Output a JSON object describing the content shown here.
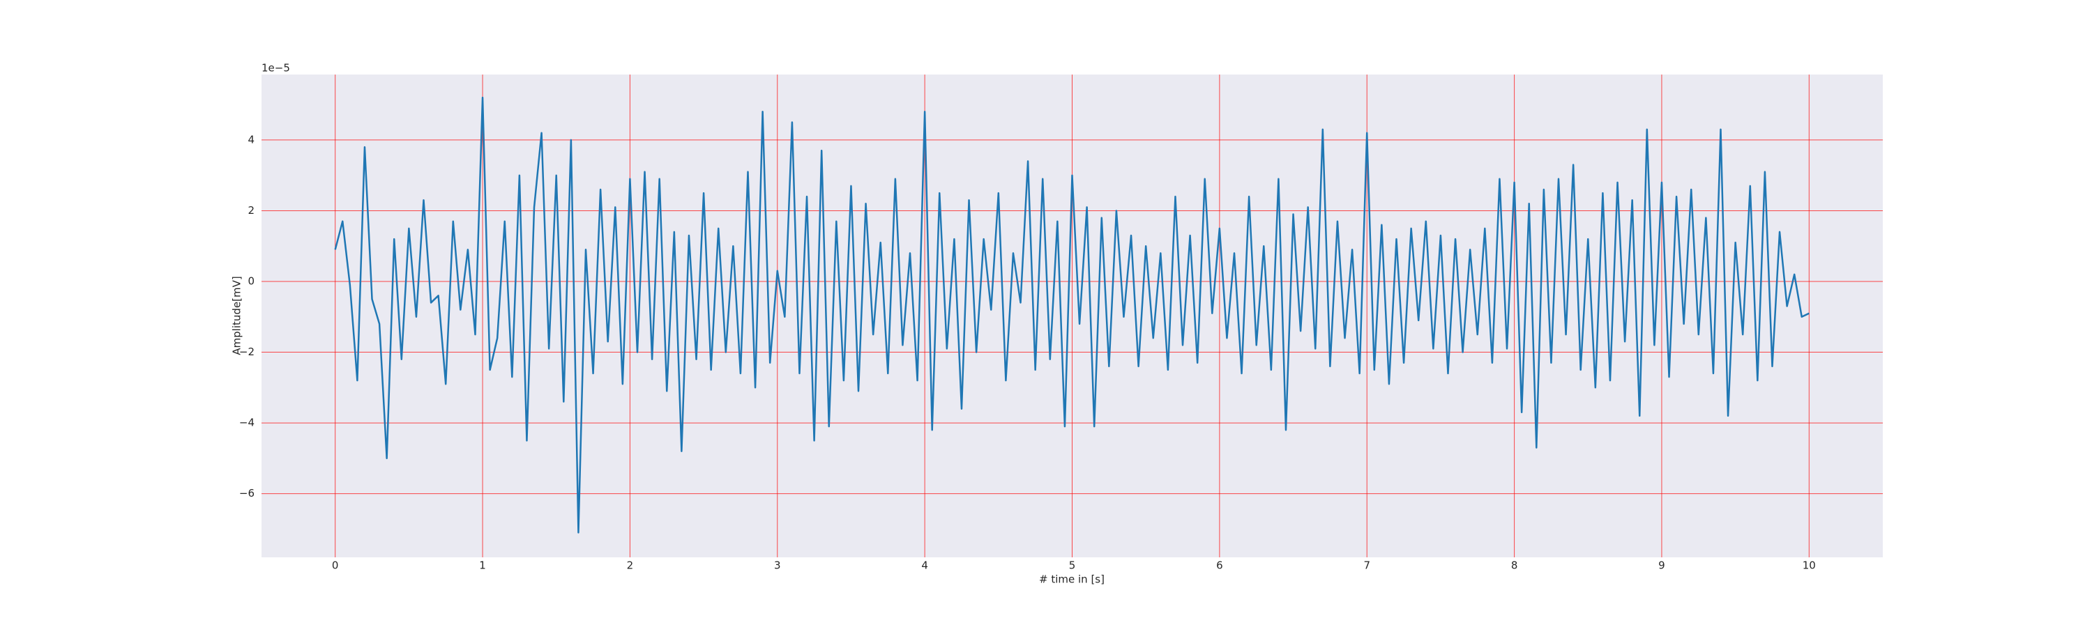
{
  "chart_data": {
    "type": "line",
    "xlabel": "# time in [s]",
    "ylabel": "Amplitude[mV]",
    "y_offset_label": "1e−5",
    "grid": true,
    "grid_color": "#ff0000",
    "background": "#eaeaf2",
    "xlim": [
      -0.5,
      10.5
    ],
    "ylim": [
      -7.8,
      5.85
    ],
    "xticks": [
      0,
      1,
      2,
      3,
      4,
      5,
      6,
      7,
      8,
      9,
      10
    ],
    "yticks": [
      {
        "value": -6,
        "label": "−6"
      },
      {
        "value": -4,
        "label": "−4"
      },
      {
        "value": -2,
        "label": "−2"
      },
      0,
      2,
      4
    ],
    "x": [
      0,
      0.05,
      0.1,
      0.15,
      0.2,
      0.25,
      0.3,
      0.35,
      0.4,
      0.45,
      0.5,
      0.55,
      0.6,
      0.65,
      0.7,
      0.75,
      0.8,
      0.85,
      0.9,
      0.95,
      1,
      1.05,
      1.1,
      1.15,
      1.2,
      1.25,
      1.3,
      1.35,
      1.4,
      1.45,
      1.5,
      1.55,
      1.6,
      1.65,
      1.7,
      1.75,
      1.8,
      1.85,
      1.9,
      1.95,
      2,
      2.05,
      2.1,
      2.15,
      2.2,
      2.25,
      2.3,
      2.35,
      2.4,
      2.45,
      2.5,
      2.55,
      2.6,
      2.65,
      2.7,
      2.75,
      2.8,
      2.85,
      2.9,
      2.95,
      3,
      3.05,
      3.1,
      3.15,
      3.2,
      3.25,
      3.3,
      3.35,
      3.4,
      3.45,
      3.5,
      3.55,
      3.6,
      3.65,
      3.7,
      3.75,
      3.8,
      3.85,
      3.9,
      3.95,
      4,
      4.05,
      4.1,
      4.15,
      4.2,
      4.25,
      4.3,
      4.35,
      4.4,
      4.45,
      4.5,
      4.55,
      4.6,
      4.65,
      4.7,
      4.75,
      4.8,
      4.85,
      4.9,
      4.95,
      5,
      5.05,
      5.1,
      5.15,
      5.2,
      5.25,
      5.3,
      5.35,
      5.4,
      5.45,
      5.5,
      5.55,
      5.6,
      5.65,
      5.7,
      5.75,
      5.8,
      5.85,
      5.9,
      5.95,
      6,
      6.05,
      6.1,
      6.15,
      6.2,
      6.25,
      6.3,
      6.35,
      6.4,
      6.45,
      6.5,
      6.55,
      6.6,
      6.65,
      6.7,
      6.75,
      6.8,
      6.85,
      6.9,
      6.95,
      7,
      7.05,
      7.1,
      7.15,
      7.2,
      7.25,
      7.3,
      7.35,
      7.4,
      7.45,
      7.5,
      7.55,
      7.6,
      7.65,
      7.7,
      7.75,
      7.8,
      7.85,
      7.9,
      7.95,
      8,
      8.05,
      8.1,
      8.15,
      8.2,
      8.25,
      8.3,
      8.35,
      8.4,
      8.45,
      8.5,
      8.55,
      8.6,
      8.65,
      8.7,
      8.75,
      8.8,
      8.85,
      8.9,
      8.95,
      9,
      9.05,
      9.1,
      9.15,
      9.2,
      9.25,
      9.3,
      9.35,
      9.4,
      9.45,
      9.5,
      9.55,
      9.6,
      9.65,
      9.7,
      9.75,
      9.8,
      9.85,
      9.9,
      9.95,
      10
    ],
    "series": [
      {
        "color": "#1f77b4",
        "values": [
          0.9,
          1.7,
          -0.1,
          -2.8,
          3.8,
          -0.5,
          -1.2,
          -5.0,
          1.2,
          -2.2,
          1.5,
          -1.0,
          2.3,
          -0.6,
          -0.4,
          -2.9,
          1.7,
          -0.8,
          0.9,
          -1.5,
          5.2,
          -2.5,
          -1.6,
          1.7,
          -2.7,
          3.0,
          -4.5,
          2.1,
          4.2,
          -1.9,
          3.0,
          -3.4,
          4.0,
          -7.1,
          0.9,
          -2.6,
          2.6,
          -1.7,
          2.1,
          -2.9,
          2.9,
          -2.0,
          3.1,
          -2.2,
          2.9,
          -3.1,
          1.4,
          -4.8,
          1.3,
          -2.2,
          2.5,
          -2.5,
          1.5,
          -2.0,
          1.0,
          -2.6,
          3.1,
          -3.0,
          4.8,
          -2.3,
          0.3,
          -1.0,
          4.5,
          -2.6,
          2.4,
          -4.5,
          3.7,
          -4.1,
          1.7,
          -2.8,
          2.7,
          -3.1,
          2.2,
          -1.5,
          1.1,
          -2.6,
          2.9,
          -1.8,
          0.8,
          -2.8,
          4.8,
          -4.2,
          2.5,
          -1.9,
          1.2,
          -3.6,
          2.3,
          -2.0,
          1.2,
          -0.8,
          2.5,
          -2.8,
          0.8,
          -0.6,
          3.4,
          -2.5,
          2.9,
          -2.2,
          1.7,
          -4.1,
          3.0,
          -1.2,
          2.1,
          -4.1,
          1.8,
          -2.4,
          2.0,
          -1.0,
          1.3,
          -2.4,
          1.0,
          -1.6,
          0.8,
          -2.5,
          2.4,
          -1.8,
          1.3,
          -2.3,
          2.9,
          -0.9,
          1.5,
          -1.6,
          0.8,
          -2.6,
          2.4,
          -1.8,
          1.0,
          -2.5,
          2.9,
          -4.2,
          1.9,
          -1.4,
          2.1,
          -1.9,
          4.3,
          -2.4,
          1.7,
          -1.6,
          0.9,
          -2.6,
          4.2,
          -2.5,
          1.6,
          -2.9,
          1.2,
          -2.3,
          1.5,
          -1.1,
          1.7,
          -1.9,
          1.3,
          -2.6,
          1.2,
          -2.0,
          0.9,
          -1.5,
          1.5,
          -2.3,
          2.9,
          -1.9,
          2.8,
          -3.7,
          2.2,
          -4.7,
          2.6,
          -2.3,
          2.9,
          -1.5,
          3.3,
          -2.5,
          1.2,
          -3.0,
          2.5,
          -2.8,
          2.8,
          -1.7,
          2.3,
          -3.8,
          4.3,
          -1.8,
          2.8,
          -2.7,
          2.4,
          -1.2,
          2.6,
          -1.5,
          1.8,
          -2.6,
          4.3,
          -3.8,
          1.1,
          -1.5,
          2.7,
          -2.8,
          3.1,
          -2.4,
          1.4,
          -0.7,
          0.2,
          -1.0,
          -0.9
        ]
      }
    ]
  }
}
